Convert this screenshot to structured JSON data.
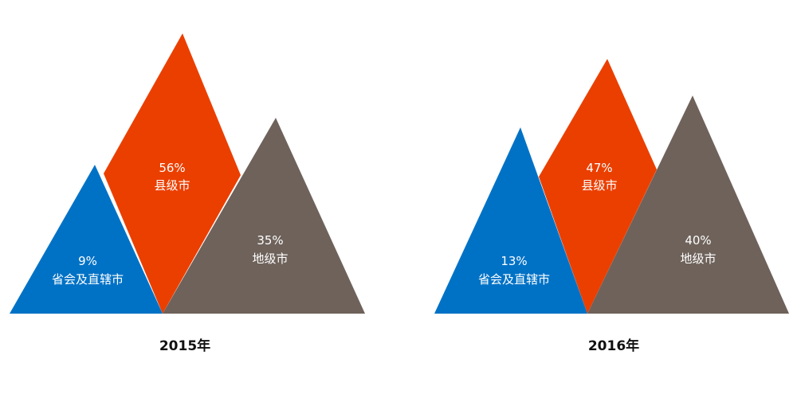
{
  "chart_data": [
    {
      "type": "area",
      "title": "2015年",
      "categories": [
        "省会及直辖市",
        "县级市",
        "地级市"
      ],
      "values": [
        9,
        56,
        35
      ],
      "unit": "%",
      "colors": [
        "#0072c6",
        "#eb3f00",
        "#6e625b"
      ]
    },
    {
      "type": "area",
      "title": "2016年",
      "categories": [
        "省会及直辖市",
        "县级市",
        "地级市"
      ],
      "values": [
        13,
        47,
        40
      ],
      "unit": "%",
      "colors": [
        "#0072c6",
        "#eb3f00",
        "#6e625b"
      ]
    }
  ]
}
